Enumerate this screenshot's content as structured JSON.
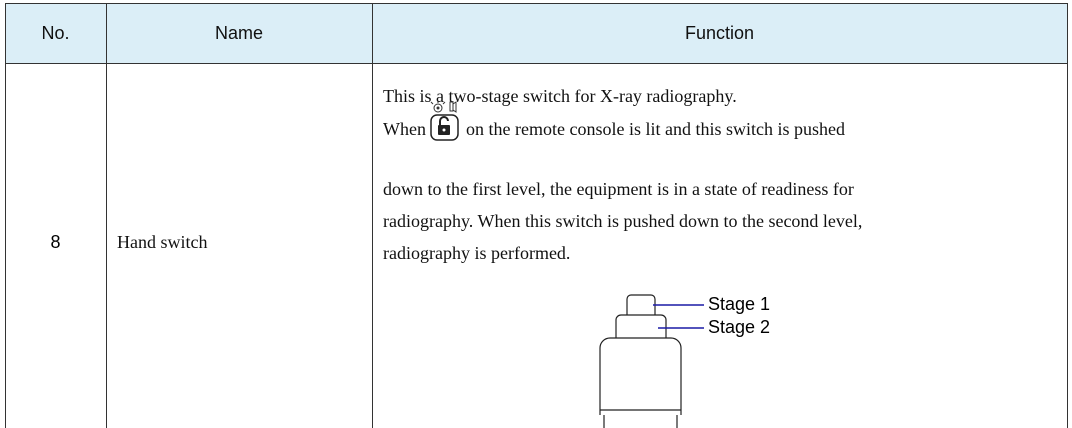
{
  "table": {
    "header": [
      "No.",
      "Name",
      "Function"
    ],
    "rows": [
      {
        "no": "8",
        "name": "Hand switch",
        "function": {
          "intro": "This is a two-stage switch for X-ray radiography.",
          "when": "When",
          "after_icon": "on the remote console is lit and this switch is pushed",
          "lines": [
            "down to the first level, the equipment is in a state of readiness for",
            "radiography. When this switch is pushed down to the second level,",
            "radiography is performed."
          ],
          "diagram_labels": [
            "Stage 1",
            "Stage 2"
          ]
        }
      }
    ]
  }
}
